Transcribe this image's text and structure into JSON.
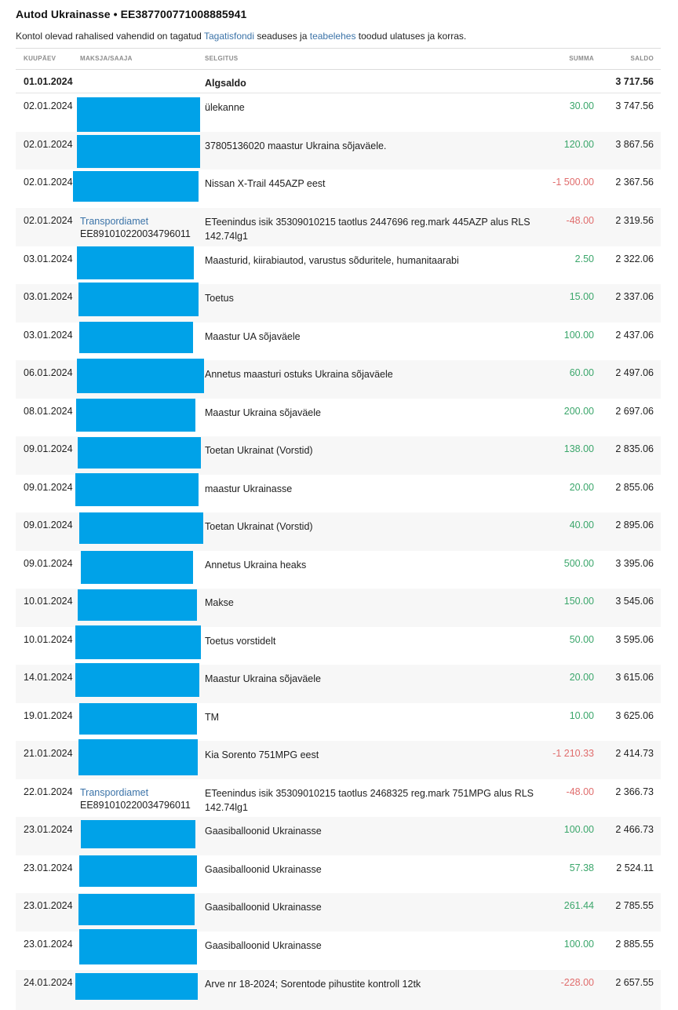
{
  "account": {
    "title": "Autod Ukrainasse • EE387700771008885941",
    "note_prefix": "Kontol olevad rahalised vahendid on tagatud ",
    "note_link1": "Tagatisfondi",
    "note_mid": " seaduses ja ",
    "note_link2": "teabelehes",
    "note_suffix": " toodud ulatuses ja korras."
  },
  "columns": {
    "date": "KUUPÄEV",
    "payer": "MAKSJA/SAAJA",
    "desc": "SELGITUS",
    "amount": "SUMMA",
    "balance": "SALDO"
  },
  "opening": {
    "date": "01.01.2024",
    "desc": "Algsaldo",
    "balance": "3 717.56"
  },
  "rows": [
    {
      "date": "02.01.2024",
      "desc": "ülekanne",
      "amount": "30.00",
      "sign": "pos",
      "balance": "3 747.56"
    },
    {
      "date": "02.01.2024",
      "desc": "37805136020 maastur Ukraina sõjaväele.",
      "amount": "120.00",
      "sign": "pos",
      "balance": "3 867.56"
    },
    {
      "date": "02.01.2024",
      "desc": "Nissan X-Trail 445AZP eest",
      "amount": "-1 500.00",
      "sign": "neg",
      "balance": "2 367.56"
    },
    {
      "date": "02.01.2024",
      "payer_name": "Transpordiamet",
      "payer_iban": "EE891010220034796011",
      "desc": "ETeenindus isik 35309010215 taotlus 2447696 reg.mark 445AZP alus RLS 142.74lg1",
      "amount": "-48.00",
      "sign": "neg",
      "balance": "2 319.56"
    },
    {
      "date": "03.01.2024",
      "desc": "Maasturid, kiirabiautod, varustus sõduritele, humanitaarabi",
      "amount": "2.50",
      "sign": "pos",
      "balance": "2 322.06"
    },
    {
      "date": "03.01.2024",
      "desc": "Toetus",
      "amount": "15.00",
      "sign": "pos",
      "balance": "2 337.06"
    },
    {
      "date": "03.01.2024",
      "desc": "Maastur UA sõjaväele",
      "amount": "100.00",
      "sign": "pos",
      "balance": "2 437.06"
    },
    {
      "date": "06.01.2024",
      "desc": "Annetus maasturi ostuks Ukraina sõjaväele",
      "amount": "60.00",
      "sign": "pos",
      "balance": "2 497.06"
    },
    {
      "date": "08.01.2024",
      "desc": "Maastur Ukraina sõjaväele",
      "amount": "200.00",
      "sign": "pos",
      "balance": "2 697.06"
    },
    {
      "date": "09.01.2024",
      "desc": "Toetan Ukrainat (Vorstid)",
      "amount": "138.00",
      "sign": "pos",
      "balance": "2 835.06"
    },
    {
      "date": "09.01.2024",
      "desc": "maastur Ukrainasse",
      "amount": "20.00",
      "sign": "pos",
      "balance": "2 855.06"
    },
    {
      "date": "09.01.2024",
      "desc": "Toetan Ukrainat (Vorstid)",
      "amount": "40.00",
      "sign": "pos",
      "balance": "2 895.06"
    },
    {
      "date": "09.01.2024",
      "desc": "Annetus Ukraina heaks",
      "amount": "500.00",
      "sign": "pos",
      "balance": "3 395.06"
    },
    {
      "date": "10.01.2024",
      "desc": "Makse",
      "amount": "150.00",
      "sign": "pos",
      "balance": "3 545.06"
    },
    {
      "date": "10.01.2024",
      "desc": "Toetus vorstidelt",
      "amount": "50.00",
      "sign": "pos",
      "balance": "3 595.06"
    },
    {
      "date": "14.01.2024",
      "desc": "Maastur Ukraina sõjaväele",
      "amount": "20.00",
      "sign": "pos",
      "balance": "3 615.06"
    },
    {
      "date": "19.01.2024",
      "desc": "TM",
      "amount": "10.00",
      "sign": "pos",
      "balance": "3 625.06"
    },
    {
      "date": "21.01.2024",
      "desc": "Kia Sorento 751MPG eest",
      "amount": "-1 210.33",
      "sign": "neg",
      "balance": "2 414.73"
    },
    {
      "date": "22.01.2024",
      "payer_name": "Transpordiamet",
      "payer_iban": "EE891010220034796011",
      "desc": "ETeenindus isik 35309010215 taotlus 2468325 reg.mark 751MPG alus RLS 142.74lg1",
      "amount": "-48.00",
      "sign": "neg",
      "balance": "2 366.73"
    },
    {
      "date": "23.01.2024",
      "desc": "Gaasiballoonid Ukrainasse",
      "amount": "100.00",
      "sign": "pos",
      "balance": "2 466.73"
    },
    {
      "date": "23.01.2024",
      "desc": "Gaasiballoonid Ukrainasse",
      "amount": "57.38",
      "sign": "pos",
      "balance": "2 524.11"
    },
    {
      "date": "23.01.2024",
      "desc": "Gaasiballoonid Ukrainasse",
      "amount": "261.44",
      "sign": "pos",
      "balance": "2 785.55"
    },
    {
      "date": "23.01.2024",
      "desc": "Gaasiballoonid Ukrainasse",
      "amount": "100.00",
      "sign": "pos",
      "balance": "2 885.55"
    },
    {
      "date": "24.01.2024",
      "desc": "Arve nr 18-2024; Sorentode pihustite kontroll 12tk",
      "amount": "-228.00",
      "sign": "neg",
      "balance": "2 657.55"
    }
  ]
}
